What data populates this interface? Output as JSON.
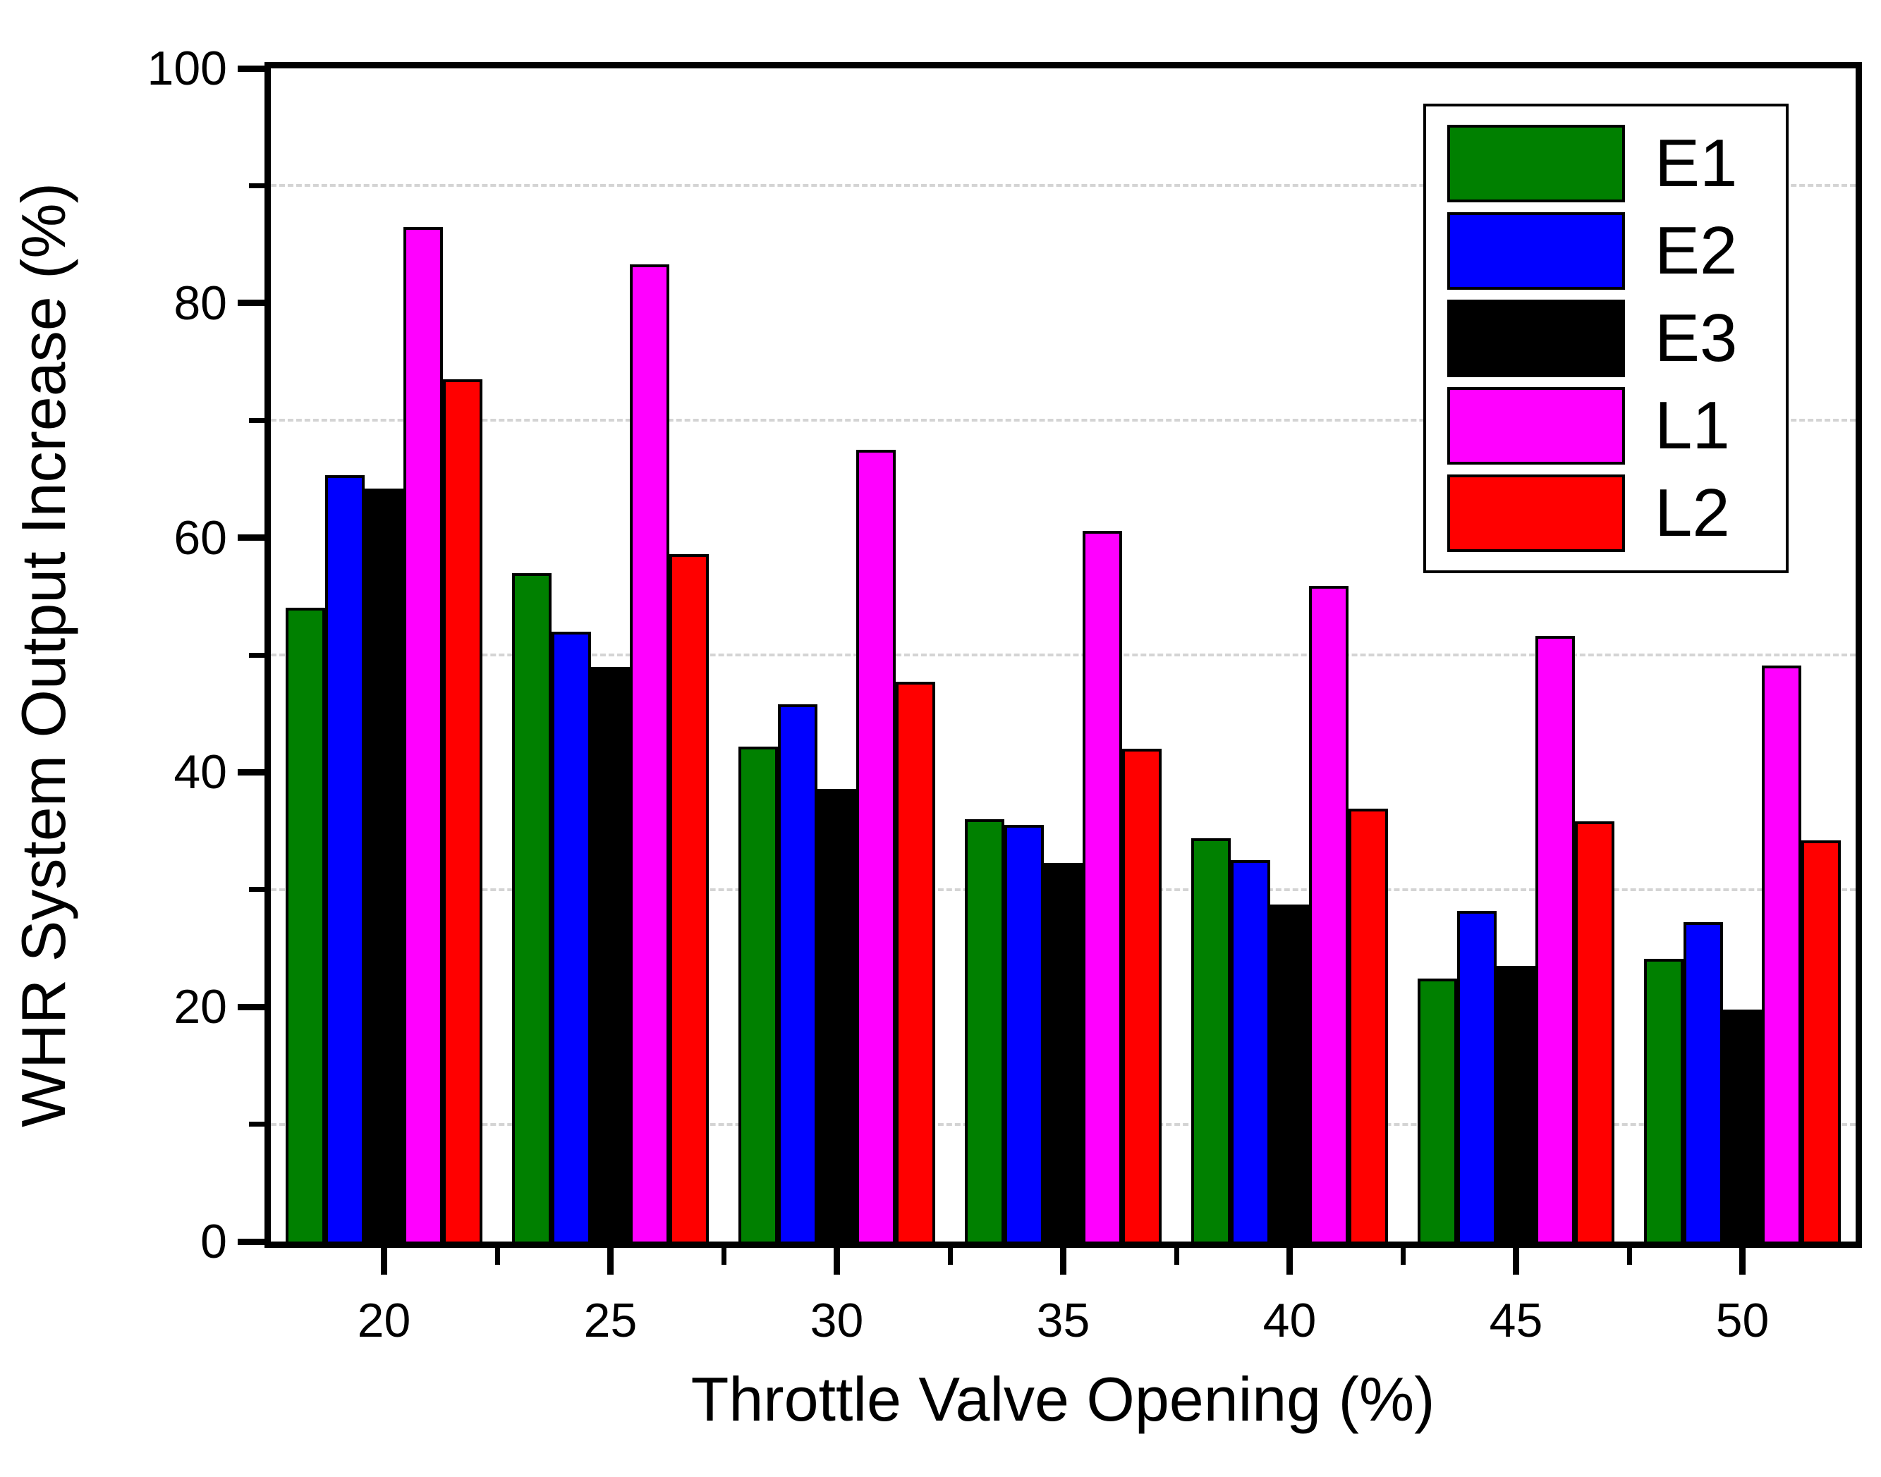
{
  "figure": {
    "background": "#ffffff",
    "frame_color": "#000000"
  },
  "chart_data": {
    "type": "bar",
    "title": "",
    "xlabel": "Throttle Valve Opening (%)",
    "ylabel": "WHR System Output Increase (%)",
    "categories": [
      "20",
      "25",
      "30",
      "35",
      "40",
      "45",
      "50"
    ],
    "series": [
      {
        "name": "E1",
        "color": "#008000",
        "values": [
          54.0,
          57.0,
          42.2,
          36.0,
          34.4,
          22.4,
          24.1
        ]
      },
      {
        "name": "E2",
        "color": "#0000ff",
        "values": [
          65.3,
          52.0,
          45.8,
          35.5,
          32.5,
          28.2,
          27.2
        ]
      },
      {
        "name": "E3",
        "color": "#000000",
        "values": [
          64.2,
          49.0,
          38.6,
          32.3,
          28.7,
          23.5,
          19.8
        ]
      },
      {
        "name": "L1",
        "color": "#ff00ff",
        "values": [
          86.5,
          83.3,
          67.5,
          60.6,
          55.9,
          51.6,
          49.1
        ]
      },
      {
        "name": "L2",
        "color": "#ff0000",
        "values": [
          73.5,
          58.6,
          47.7,
          42.0,
          36.9,
          35.8,
          34.2
        ]
      }
    ],
    "ylim": [
      0,
      100
    ],
    "y_major_ticks": [
      0,
      20,
      40,
      60,
      80,
      100
    ],
    "y_minor_ticks": [
      10,
      30,
      50,
      70,
      90
    ],
    "gridlines": {
      "at": [
        10,
        30,
        50,
        70,
        90
      ],
      "style": "dashed",
      "color": "#d4d4d4"
    },
    "bar_edge_color": "#000000",
    "legend_position": "top-right",
    "legend_labels": [
      "E1",
      "E2",
      "E3",
      "L1",
      "L2"
    ]
  }
}
